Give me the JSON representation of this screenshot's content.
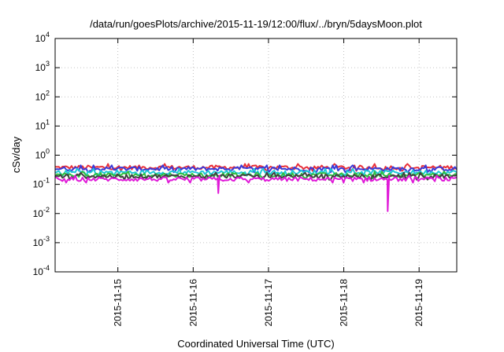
{
  "chart_data": {
    "type": "line",
    "title": "/data/run/goesPlots/archive/2015-11-19/12:00/flux/../bryn/5daysMoon.plot",
    "xlabel": "Coordinated Universal Time (UTC)",
    "ylabel": "cSv/day",
    "yscale": "log",
    "ylim": [
      0.0001,
      10000
    ],
    "xlim": [
      "2015-11-14T04:00",
      "2015-11-19T12:00"
    ],
    "grid": true,
    "yticks": [
      {
        "base": "10",
        "exp": "-4"
      },
      {
        "base": "10",
        "exp": "-3"
      },
      {
        "base": "10",
        "exp": "-2"
      },
      {
        "base": "10",
        "exp": "-1"
      },
      {
        "base": "10",
        "exp": "0"
      },
      {
        "base": "10",
        "exp": "1"
      },
      {
        "base": "10",
        "exp": "2"
      },
      {
        "base": "10",
        "exp": "3"
      },
      {
        "base": "10",
        "exp": "4"
      }
    ],
    "xticks": [
      {
        "label": "2015-11-15",
        "x": "2015-11-15T00:00"
      },
      {
        "label": "2015-11-16",
        "x": "2015-11-16T00:00"
      },
      {
        "label": "2015-11-17",
        "x": "2015-11-17T00:00"
      },
      {
        "label": "2015-11-18",
        "x": "2015-11-18T00:00"
      },
      {
        "label": "2015-11-19",
        "x": "2015-11-19T00:00"
      }
    ],
    "series": [
      {
        "color": "#e8303a",
        "level": 0.38,
        "dips": []
      },
      {
        "color": "#3a3ad8",
        "level": 0.34,
        "dips": []
      },
      {
        "color": "#20c8d8",
        "level": 0.26,
        "dips": []
      },
      {
        "color": "#30c040",
        "level": 0.21,
        "dips": []
      },
      {
        "color": "#404040",
        "level": 0.19,
        "dips": []
      },
      {
        "color": "#e01ad8",
        "level": 0.15,
        "dips": [
          {
            "x": "2015-11-16T08:00",
            "y": 0.05
          },
          {
            "x": "2015-11-18T14:00",
            "y": 0.012
          }
        ]
      }
    ]
  }
}
